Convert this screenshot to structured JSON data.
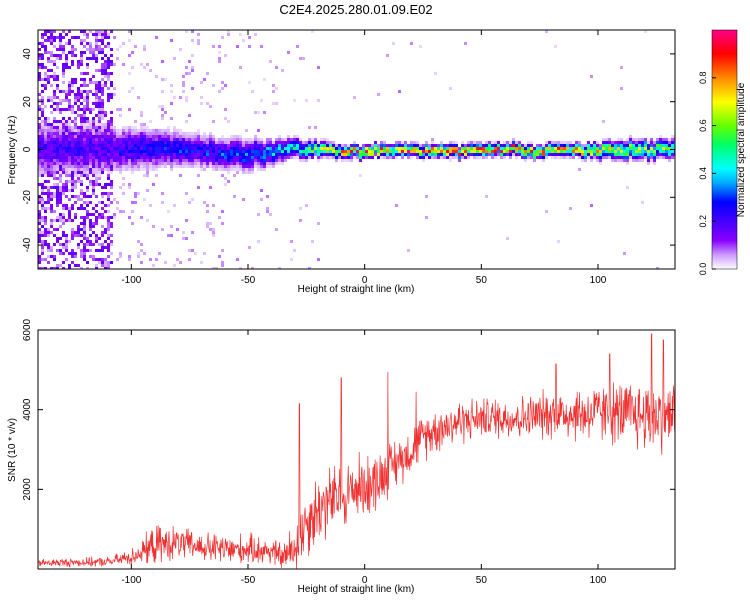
{
  "title": "C2E4.2025.280.01.09.E02",
  "colors": {
    "snr_line": "#f03030",
    "axes": "#000000",
    "colorscale": [
      "#ffffff",
      "#cc99ff",
      "#8800ff",
      "#4400ff",
      "#0000ff",
      "#00aaff",
      "#00ffff",
      "#00ff66",
      "#66ff00",
      "#ffff00",
      "#ff8800",
      "#ff0000",
      "#ff0088"
    ]
  },
  "chart_data": [
    {
      "type": "heatmap",
      "name": "spectrogram",
      "xlabel": "Height of straight line (km)",
      "ylabel": "Frequency (Hz)",
      "xlim": [
        -140,
        133
      ],
      "ylim": [
        -50,
        50
      ],
      "xticks": [
        {
          "value": -100,
          "label": "-100"
        },
        {
          "value": -50,
          "label": "-50"
        },
        {
          "value": 0,
          "label": "0"
        },
        {
          "value": 50,
          "label": "50"
        },
        {
          "value": 100,
          "label": "100"
        }
      ],
      "yticks": [
        {
          "value": -40,
          "label": "-40"
        },
        {
          "value": -20,
          "label": "-20"
        },
        {
          "value": 0,
          "label": "0"
        },
        {
          "value": 20,
          "label": "20"
        },
        {
          "value": 40,
          "label": "40"
        }
      ],
      "colorbar": {
        "label": "Normalized spectral amplitude",
        "range": [
          0,
          1
        ],
        "ticks": [
          {
            "value": 0.0,
            "label": "0.0"
          },
          {
            "value": 0.2,
            "label": "0.2"
          },
          {
            "value": 0.4,
            "label": "0.4"
          },
          {
            "value": 0.6,
            "label": "0.6"
          },
          {
            "value": 0.8,
            "label": "0.8"
          }
        ]
      },
      "ridge": {
        "x": [
          -110,
          -90,
          -70,
          -50,
          -30,
          -10,
          10,
          30,
          50,
          70,
          90,
          110,
          130
        ],
        "center_hz": [
          1,
          1,
          0,
          -2,
          1,
          0,
          0,
          0,
          0,
          0,
          0,
          0,
          1
        ],
        "halfwidth_hz": [
          7,
          6,
          5,
          5,
          3,
          2,
          2,
          2,
          2,
          2,
          2,
          3,
          3
        ],
        "peak_amplitude": [
          0.25,
          0.3,
          0.3,
          0.35,
          0.5,
          0.85,
          0.9,
          0.9,
          0.92,
          0.9,
          0.85,
          0.7,
          0.6
        ]
      },
      "noise_region": {
        "x": [
          -140,
          -108
        ],
        "amplitude": 0.15
      }
    },
    {
      "type": "line",
      "name": "snr",
      "xlabel": "Height of straight line (km)",
      "ylabel": "SNR (10 * v/v)",
      "xlim": [
        -140,
        133
      ],
      "ylim": [
        0,
        6000
      ],
      "xticks": [
        {
          "value": -100,
          "label": "-100"
        },
        {
          "value": -50,
          "label": "-50"
        },
        {
          "value": 0,
          "label": "0"
        },
        {
          "value": 50,
          "label": "50"
        },
        {
          "value": 100,
          "label": "100"
        }
      ],
      "yticks": [
        {
          "value": 2000,
          "label": "2000"
        },
        {
          "value": 4000,
          "label": "4000"
        },
        {
          "value": 6000,
          "label": "6000"
        }
      ],
      "envelope": {
        "x": [
          -140,
          -110,
          -100,
          -95,
          -90,
          -80,
          -70,
          -60,
          -50,
          -40,
          -35,
          -30,
          -25,
          -20,
          -15,
          -10,
          -5,
          0,
          5,
          10,
          20,
          25,
          30,
          40,
          50,
          60,
          70,
          80,
          90,
          100,
          110,
          120,
          133
        ],
        "mean": [
          150,
          180,
          300,
          450,
          600,
          650,
          550,
          480,
          500,
          450,
          300,
          500,
          1200,
          1500,
          1700,
          1800,
          2000,
          2100,
          2200,
          2500,
          3000,
          3300,
          3500,
          3700,
          3800,
          3800,
          3800,
          3900,
          3900,
          3900,
          3900,
          3850,
          3850
        ],
        "spread": [
          120,
          150,
          250,
          400,
          600,
          500,
          450,
          500,
          450,
          450,
          400,
          900,
          1100,
          1100,
          1100,
          1000,
          1000,
          1000,
          900,
          800,
          700,
          700,
          700,
          700,
          600,
          650,
          700,
          750,
          850,
          900,
          1000,
          1100,
          1100
        ]
      },
      "spikes": [
        {
          "x": -28,
          "y": 4150
        },
        {
          "x": -10,
          "y": 4800
        },
        {
          "x": 10,
          "y": 4950
        },
        {
          "x": 22,
          "y": 4450
        },
        {
          "x": 82,
          "y": 5150
        },
        {
          "x": 105,
          "y": 5400
        },
        {
          "x": 123,
          "y": 5900
        },
        {
          "x": 128,
          "y": 5750
        }
      ]
    }
  ]
}
